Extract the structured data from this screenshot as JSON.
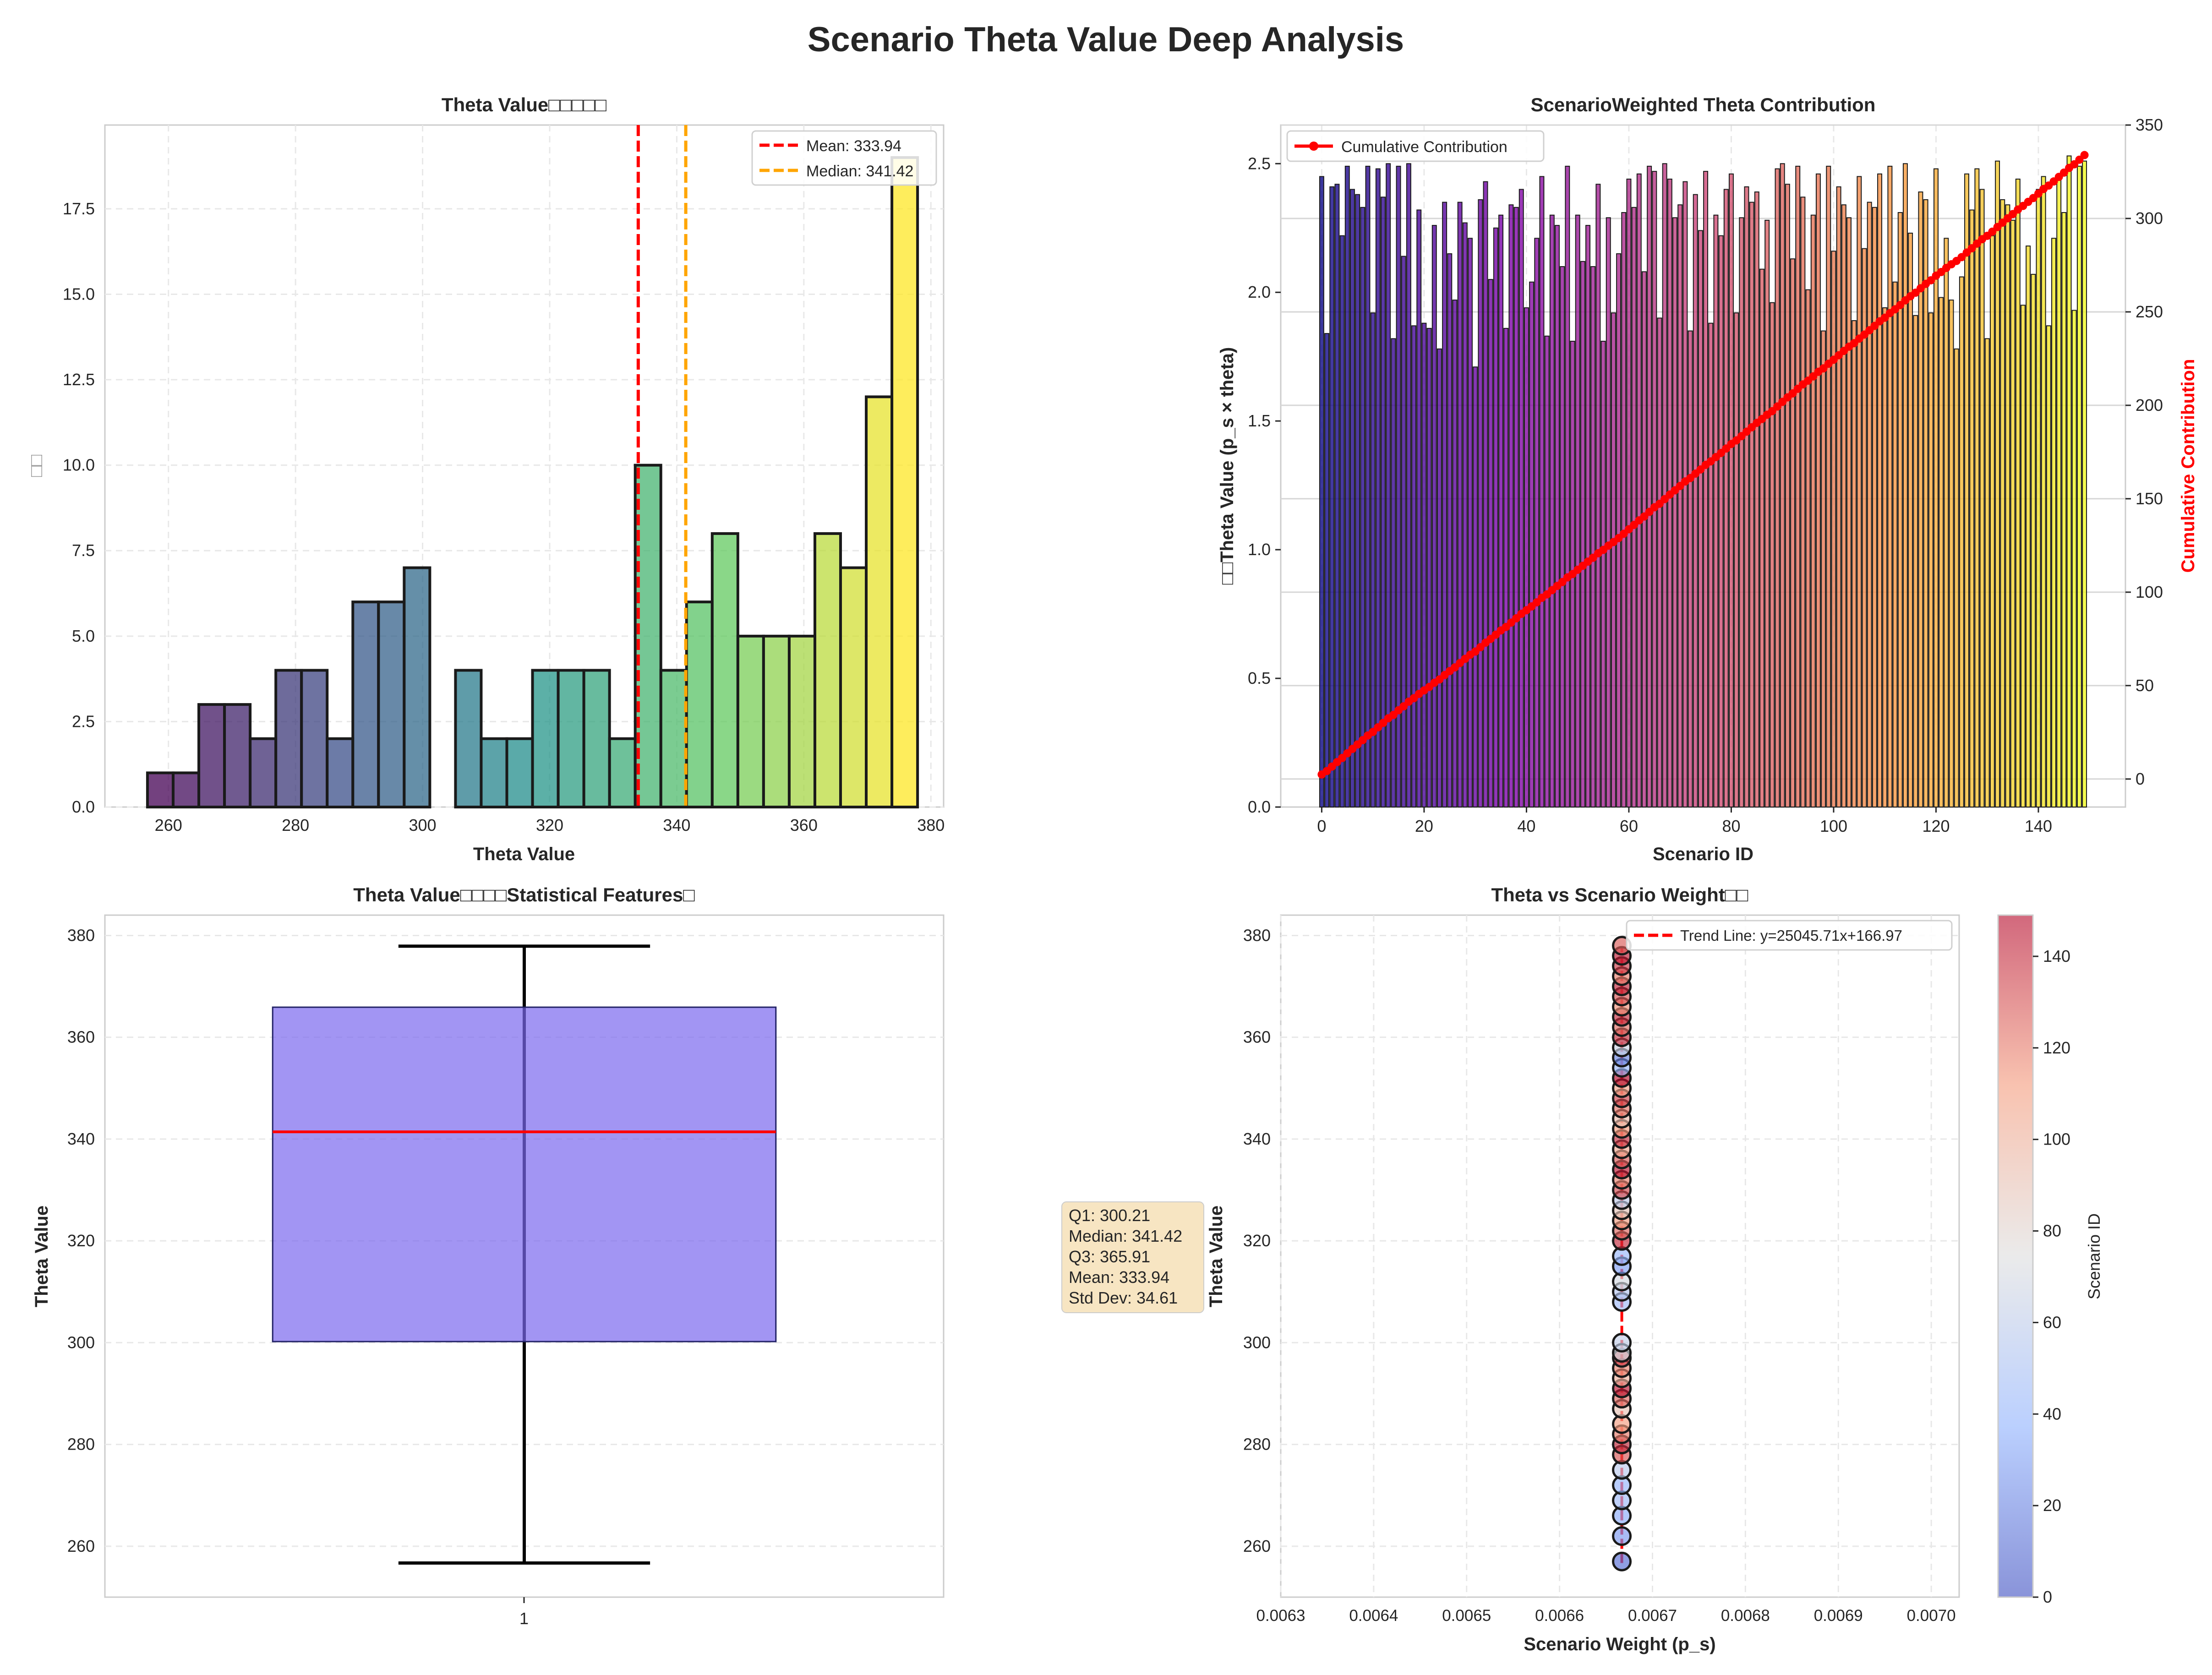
{
  "figure_title": "Scenario Theta Value Deep Analysis",
  "colors": {
    "mean_line": "#ff0000",
    "median_line": "#ffa500",
    "box_fill": "#7b68ee",
    "box_median": "#ff0000",
    "cumulative": "#ff0000",
    "trend": "#ff0000",
    "stats_box": "#f5deb3"
  },
  "chart_data": [
    {
      "type": "bar",
      "subtype": "histogram",
      "title": "Theta Value□□□□□",
      "xlabel": "Theta Value",
      "ylabel": "□□",
      "xlim": [
        250,
        382
      ],
      "ylim": [
        0,
        19.95
      ],
      "x_ticks": [
        "260",
        "280",
        "300",
        "320",
        "340",
        "360",
        "380"
      ],
      "x_tick_values": [
        260,
        280,
        300,
        320,
        340,
        360,
        380
      ],
      "y_ticks": [
        "0.0",
        "2.5",
        "5.0",
        "7.5",
        "10.0",
        "12.5",
        "15.0",
        "17.5"
      ],
      "y_tick_values": [
        0,
        2.5,
        5,
        7.5,
        10,
        12.5,
        15,
        17.5
      ],
      "bin_start": 256.7,
      "bin_width": 4.04,
      "counts": [
        1,
        1,
        3,
        3,
        2,
        4,
        4,
        2,
        6,
        6,
        7,
        0,
        4,
        2,
        2,
        4,
        4,
        4,
        2,
        10,
        4,
        6,
        8,
        5,
        5,
        5,
        8,
        7,
        12,
        19
      ],
      "colormap": "viridis",
      "mean": 333.94,
      "median": 341.42,
      "legend": [
        "Mean: 333.94",
        "Median: 341.42"
      ],
      "legend_position": "upper right"
    },
    {
      "type": "bar",
      "title": "ScenarioWeighted Theta Contribution",
      "xlabel": "Scenario ID",
      "ylabel": "□□Theta Value (p_s × theta)",
      "y2label": "Cumulative Contribution",
      "n": 150,
      "xlim": [
        -8,
        157
      ],
      "ylim": [
        0,
        2.65
      ],
      "y2lim": [
        -15,
        350
      ],
      "x_ticks": [
        "0",
        "20",
        "40",
        "60",
        "80",
        "100",
        "120",
        "140"
      ],
      "x_tick_values": [
        0,
        20,
        40,
        60,
        80,
        100,
        120,
        140
      ],
      "y_ticks": [
        "0.0",
        "0.5",
        "1.0",
        "1.5",
        "2.0",
        "2.5"
      ],
      "y_tick_values": [
        0,
        0.5,
        1,
        1.5,
        2,
        2.5
      ],
      "y2_ticks": [
        "0",
        "50",
        "100",
        "150",
        "200",
        "250",
        "300",
        "350"
      ],
      "y2_tick_values": [
        0,
        50,
        100,
        150,
        200,
        250,
        300,
        350
      ],
      "weighted_values": [
        2.45,
        1.84,
        2.41,
        2.42,
        2.22,
        2.49,
        2.4,
        2.38,
        2.33,
        2.49,
        1.92,
        2.48,
        2.37,
        2.5,
        1.82,
        2.49,
        2.14,
        2.5,
        1.87,
        2.32,
        1.88,
        1.86,
        2.26,
        1.78,
        2.35,
        2.15,
        1.97,
        2.35,
        2.27,
        2.21,
        1.71,
        2.36,
        2.43,
        2.05,
        2.25,
        2.3,
        1.86,
        2.34,
        2.33,
        2.4,
        1.94,
        2.04,
        2.21,
        2.45,
        1.83,
        2.3,
        2.26,
        2.1,
        2.49,
        1.81,
        2.3,
        2.12,
        2.26,
        2.1,
        2.42,
        1.81,
        2.29,
        1.92,
        2.15,
        2.31,
        2.44,
        2.33,
        2.46,
        2.08,
        2.49,
        2.47,
        1.9,
        2.5,
        2.44,
        2.29,
        2.34,
        2.43,
        1.85,
        2.38,
        2.24,
        2.47,
        1.88,
        2.3,
        2.22,
        2.4,
        2.46,
        1.92,
        2.29,
        2.41,
        2.35,
        2.39,
        2.09,
        2.28,
        1.96,
        2.48,
        2.5,
        2.42,
        2.13,
        2.49,
        2.37,
        2.01,
        2.3,
        2.46,
        1.85,
        2.49,
        2.16,
        2.41,
        2.34,
        2.29,
        1.89,
        2.45,
        2.17,
        2.35,
        2.33,
        2.46,
        1.94,
        2.49,
        2.04,
        2.31,
        2.5,
        2.23,
        1.91,
        2.39,
        2.36,
        1.92,
        2.48,
        1.98,
        2.21,
        1.97,
        1.78,
        2.06,
        2.46,
        2.32,
        2.48,
        2.4,
        1.82,
        2.22,
        2.51,
        2.36,
        2.34,
        2.28,
        2.44,
        1.95,
        2.18,
        2.07,
        2.4,
        2.45,
        1.87,
        2.21,
        2.44,
        2.31,
        2.53,
        1.93,
        2.49,
        2.51
      ],
      "cumulative_final": 333.94,
      "colormap": "plasma",
      "legend": [
        "Cumulative Contribution"
      ],
      "legend_position": "upper left"
    },
    {
      "type": "box",
      "title": "Theta Value□□□□Statistical Features□",
      "ylabel": "Theta Value",
      "xlabel": "",
      "x_ticks": [
        "1"
      ],
      "ylim": [
        250,
        384
      ],
      "y_ticks": [
        "260",
        "280",
        "300",
        "320",
        "340",
        "360",
        "380"
      ],
      "y_tick_values": [
        260,
        280,
        300,
        320,
        340,
        360,
        380
      ],
      "min": 256.7,
      "q1": 300.21,
      "median": 341.42,
      "q3": 365.91,
      "max": 377.9,
      "stats_text": [
        "Q1: 300.21",
        "Median: 341.42",
        "Q3: 365.91",
        "Mean: 333.94",
        "Std Dev: 34.61"
      ]
    },
    {
      "type": "scatter",
      "title": "Theta vs Scenario Weight□□",
      "xlabel": "Scenario Weight (p_s)",
      "ylabel": "Theta Value",
      "xlim": [
        0.0063,
        0.00703
      ],
      "ylim": [
        250,
        384
      ],
      "x_ticks": [
        "0.0063",
        "0.0064",
        "0.0065",
        "0.0066",
        "0.0067",
        "0.0068",
        "0.0069",
        "0.0070"
      ],
      "x_tick_values": [
        0.0063,
        0.0064,
        0.0065,
        0.0066,
        0.0067,
        0.0068,
        0.0069,
        0.007
      ],
      "y_ticks": [
        "260",
        "280",
        "300",
        "320",
        "340",
        "360",
        "380"
      ],
      "y_tick_values": [
        260,
        280,
        300,
        320,
        340,
        360,
        380
      ],
      "weight": 0.006667,
      "legend": [
        "Trend Line: y=25045.71x+166.97"
      ],
      "legend_position": "upper right",
      "colorbar_label": "Scenario ID",
      "colorbar_ticks": [
        "0",
        "20",
        "40",
        "60",
        "80",
        "100",
        "120",
        "140"
      ],
      "colorbar_tick_values": [
        0,
        20,
        40,
        60,
        80,
        100,
        120,
        140
      ],
      "colormap": "coolwarm",
      "points": [
        [
          257,
          12
        ],
        [
          262,
          28
        ],
        [
          266,
          35
        ],
        [
          269,
          45
        ],
        [
          272,
          40
        ],
        [
          275,
          58
        ],
        [
          278,
          130
        ],
        [
          280,
          140
        ],
        [
          282,
          120
        ],
        [
          284,
          110
        ],
        [
          287,
          90
        ],
        [
          289,
          125
        ],
        [
          291,
          145
        ],
        [
          293,
          100
        ],
        [
          295,
          118
        ],
        [
          297,
          135
        ],
        [
          298,
          70
        ],
        [
          300,
          62
        ],
        [
          308,
          45
        ],
        [
          310,
          55
        ],
        [
          312,
          70
        ],
        [
          315,
          30
        ],
        [
          317,
          42
        ],
        [
          320,
          140
        ],
        [
          322,
          125
        ],
        [
          324,
          110
        ],
        [
          326,
          88
        ],
        [
          328,
          60
        ],
        [
          330,
          132
        ],
        [
          332,
          118
        ],
        [
          334,
          145
        ],
        [
          336,
          128
        ],
        [
          338,
          105
        ],
        [
          340,
          138
        ],
        [
          342,
          112
        ],
        [
          344,
          95
        ],
        [
          346,
          122
        ],
        [
          348,
          134
        ],
        [
          350,
          108
        ],
        [
          352,
          148
        ],
        [
          354,
          42
        ],
        [
          356,
          20
        ],
        [
          358,
          65
        ],
        [
          360,
          138
        ],
        [
          362,
          124
        ],
        [
          364,
          140
        ],
        [
          366,
          115
        ],
        [
          368,
          130
        ],
        [
          370,
          142
        ],
        [
          372,
          119
        ],
        [
          374,
          136
        ],
        [
          376,
          144
        ],
        [
          378,
          128
        ]
      ]
    }
  ]
}
